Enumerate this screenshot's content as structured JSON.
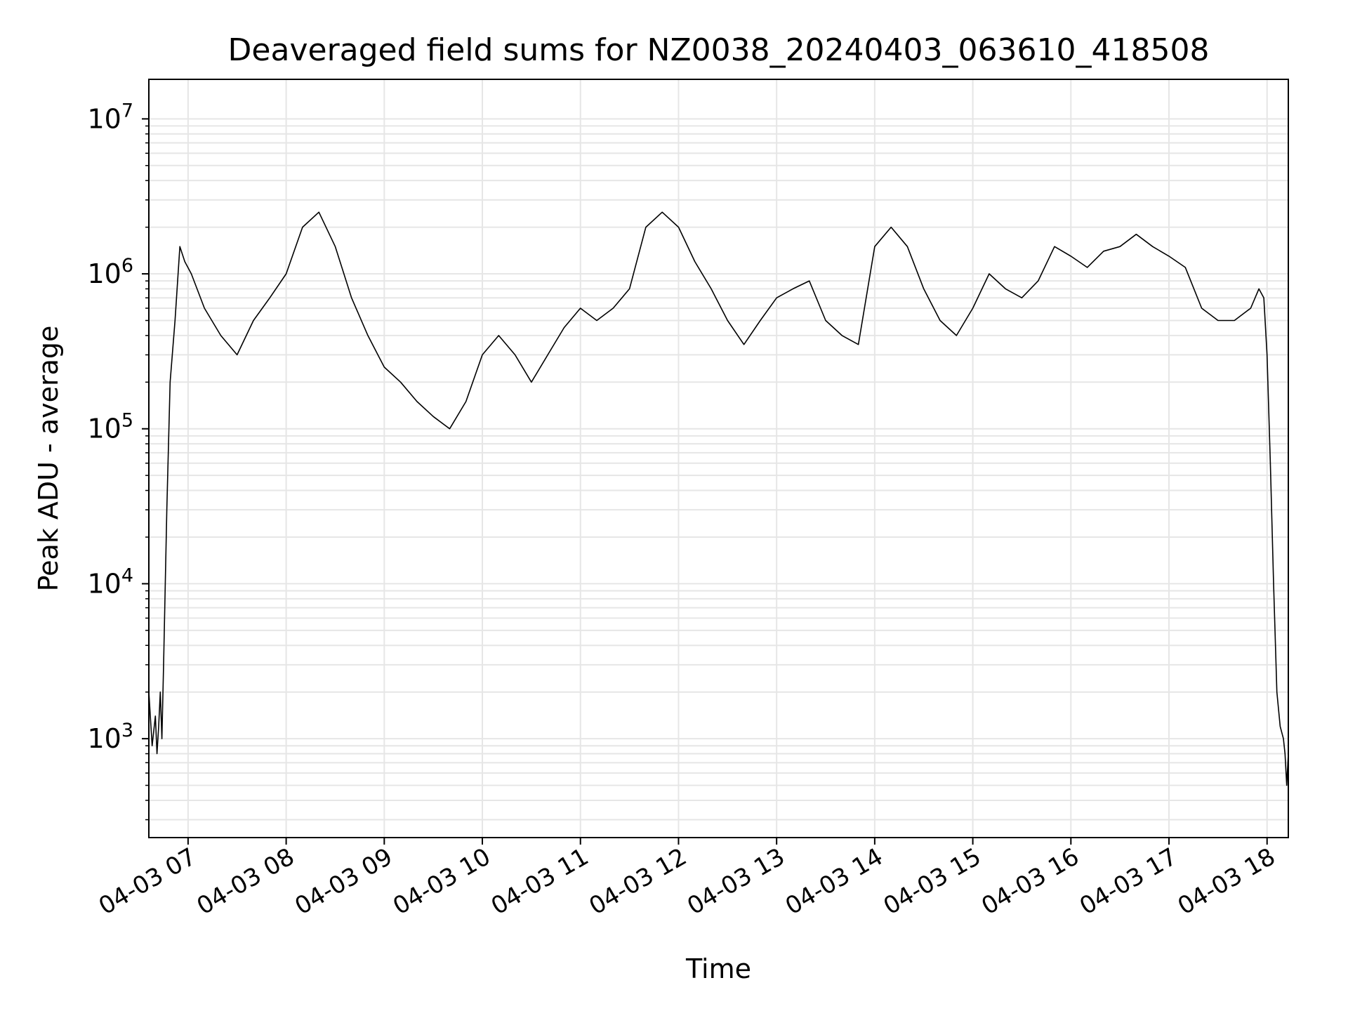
{
  "chart_data": {
    "type": "line",
    "title": "Deaveraged field sums for NZ0038_20240403_063610_418508",
    "xlabel": "Time",
    "ylabel": "Peak ADU - average",
    "yscale": "log",
    "ylim": [
      230,
      18000000
    ],
    "xlim": [
      "2024-04-03 06:36",
      "2024-04-03 18:13"
    ],
    "x_ticks": [
      {
        "value": "2024-04-03 07:00",
        "label": "04-03 07"
      },
      {
        "value": "2024-04-03 08:00",
        "label": "04-03 08"
      },
      {
        "value": "2024-04-03 09:00",
        "label": "04-03 09"
      },
      {
        "value": "2024-04-03 10:00",
        "label": "04-03 10"
      },
      {
        "value": "2024-04-03 11:00",
        "label": "04-03 11"
      },
      {
        "value": "2024-04-03 12:00",
        "label": "04-03 12"
      },
      {
        "value": "2024-04-03 13:00",
        "label": "04-03 13"
      },
      {
        "value": "2024-04-03 14:00",
        "label": "04-03 14"
      },
      {
        "value": "2024-04-03 15:00",
        "label": "04-03 15"
      },
      {
        "value": "2024-04-03 16:00",
        "label": "04-03 16"
      },
      {
        "value": "2024-04-03 17:00",
        "label": "04-03 17"
      },
      {
        "value": "2024-04-03 18:00",
        "label": "04-03 18"
      }
    ],
    "y_ticks": [
      {
        "value": 1000,
        "base": "10",
        "exp": "3"
      },
      {
        "value": 10000,
        "base": "10",
        "exp": "4"
      },
      {
        "value": 100000,
        "base": "10",
        "exp": "5"
      },
      {
        "value": 1000000,
        "base": "10",
        "exp": "6"
      },
      {
        "value": 10000000,
        "base": "10",
        "exp": "7"
      }
    ],
    "grid": true,
    "grid_minor": true,
    "line_color": "#000000",
    "grid_color": "#e6e6e6",
    "series": [
      {
        "x": [
          "2024-04-03 06:36",
          "2024-04-03 06:38",
          "2024-04-03 06:40",
          "2024-04-03 06:41",
          "2024-04-03 06:42",
          "2024-04-03 06:43",
          "2024-04-03 06:44",
          "2024-04-03 06:45",
          "2024-04-03 06:47",
          "2024-04-03 06:49",
          "2024-04-03 06:52",
          "2024-04-03 06:55",
          "2024-04-03 06:58",
          "2024-04-03 07:02",
          "2024-04-03 07:10",
          "2024-04-03 07:20",
          "2024-04-03 07:30",
          "2024-04-03 07:40",
          "2024-04-03 07:50",
          "2024-04-03 08:00",
          "2024-04-03 08:10",
          "2024-04-03 08:20",
          "2024-04-03 08:30",
          "2024-04-03 08:40",
          "2024-04-03 08:50",
          "2024-04-03 09:00",
          "2024-04-03 09:10",
          "2024-04-03 09:20",
          "2024-04-03 09:30",
          "2024-04-03 09:40",
          "2024-04-03 09:50",
          "2024-04-03 10:00",
          "2024-04-03 10:10",
          "2024-04-03 10:20",
          "2024-04-03 10:30",
          "2024-04-03 10:40",
          "2024-04-03 10:50",
          "2024-04-03 11:00",
          "2024-04-03 11:10",
          "2024-04-03 11:20",
          "2024-04-03 11:30",
          "2024-04-03 11:40",
          "2024-04-03 11:50",
          "2024-04-03 12:00",
          "2024-04-03 12:10",
          "2024-04-03 12:20",
          "2024-04-03 12:30",
          "2024-04-03 12:40",
          "2024-04-03 12:50",
          "2024-04-03 13:00",
          "2024-04-03 13:10",
          "2024-04-03 13:20",
          "2024-04-03 13:30",
          "2024-04-03 13:40",
          "2024-04-03 13:50",
          "2024-04-03 14:00",
          "2024-04-03 14:10",
          "2024-04-03 14:20",
          "2024-04-03 14:30",
          "2024-04-03 14:40",
          "2024-04-03 14:50",
          "2024-04-03 15:00",
          "2024-04-03 15:10",
          "2024-04-03 15:20",
          "2024-04-03 15:30",
          "2024-04-03 15:40",
          "2024-04-03 15:50",
          "2024-04-03 16:00",
          "2024-04-03 16:10",
          "2024-04-03 16:20",
          "2024-04-03 16:30",
          "2024-04-03 16:40",
          "2024-04-03 16:50",
          "2024-04-03 17:00",
          "2024-04-03 17:10",
          "2024-04-03 17:20",
          "2024-04-03 17:30",
          "2024-04-03 17:40",
          "2024-04-03 17:50",
          "2024-04-03 17:55",
          "2024-04-03 17:58",
          "2024-04-03 18:00",
          "2024-04-03 18:02",
          "2024-04-03 18:04",
          "2024-04-03 18:06",
          "2024-04-03 18:08",
          "2024-04-03 18:10",
          "2024-04-03 18:11",
          "2024-04-03 18:12",
          "2024-04-03 18:13"
        ],
        "y": [
          2000,
          900,
          1400,
          800,
          1200,
          2000,
          1000,
          3000,
          30000,
          200000,
          500000,
          1500000,
          1200000,
          1000000,
          600000,
          400000,
          300000,
          500000,
          700000,
          1000000,
          2000000,
          2500000,
          1500000,
          700000,
          400000,
          250000,
          200000,
          150000,
          120000,
          100000,
          150000,
          300000,
          400000,
          300000,
          200000,
          300000,
          450000,
          600000,
          500000,
          600000,
          800000,
          2000000,
          2500000,
          2000000,
          1200000,
          800000,
          500000,
          350000,
          500000,
          700000,
          800000,
          900000,
          500000,
          400000,
          350000,
          1500000,
          2000000,
          1500000,
          800000,
          500000,
          400000,
          600000,
          1000000,
          800000,
          700000,
          900000,
          1500000,
          1300000,
          1100000,
          1400000,
          1500000,
          1800000,
          1500000,
          1300000,
          1100000,
          600000,
          500000,
          500000,
          600000,
          800000,
          700000,
          300000,
          60000,
          10000,
          2000,
          1200,
          1000,
          800,
          500,
          800
        ]
      }
    ]
  }
}
